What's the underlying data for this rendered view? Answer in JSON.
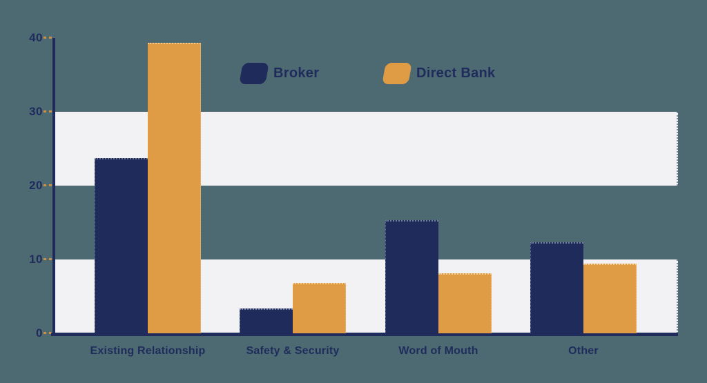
{
  "chart": {
    "background_color": "#4d6a73",
    "band_color": "#f2f2f4",
    "axis_color": "#1f2c5b",
    "tick_dash_color": "#cf9040",
    "text_color": "#1f2c5b"
  },
  "chart_data": {
    "type": "bar",
    "categories": [
      "Existing Relationship",
      "Safety & Security",
      "Word of Mouth",
      "Other"
    ],
    "series": [
      {
        "name": "Broker",
        "color": "#1f2c5b",
        "values": [
          23.7,
          3.4,
          15.3,
          12.3
        ]
      },
      {
        "name": "Direct Bank",
        "color": "#e09c45",
        "values": [
          39.3,
          6.8,
          8.1,
          9.4
        ]
      }
    ],
    "y_ticks": [
      0,
      10,
      20,
      30,
      40
    ],
    "ylim": [
      0,
      40
    ],
    "grid": "horizontal-background-bands",
    "background_bands": [
      [
        0,
        10
      ],
      [
        20,
        30
      ]
    ],
    "legend_position": "top-center"
  }
}
